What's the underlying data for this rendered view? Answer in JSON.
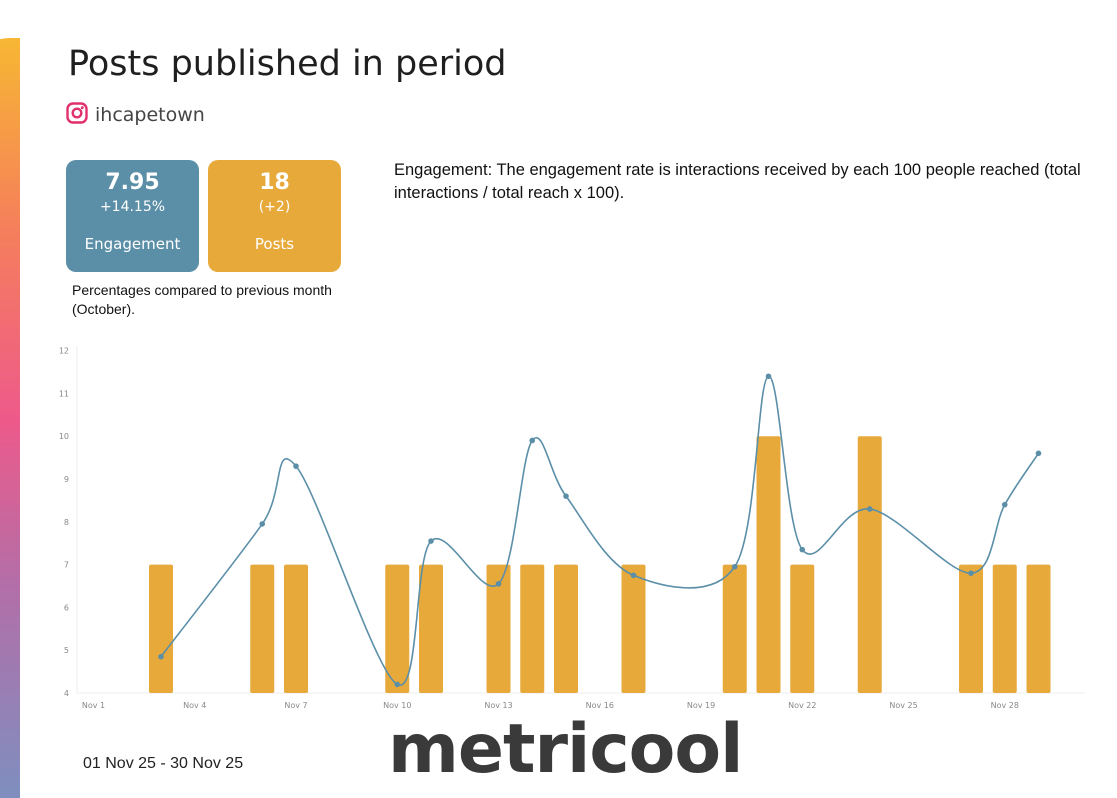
{
  "page": {
    "title": "Posts published in period",
    "account": "ihcapetown",
    "account_icon": "instagram-icon",
    "kpi_cards": [
      {
        "value": "7.95",
        "delta": "+14.15%",
        "label": "Engagement",
        "color": "#5b8fa8"
      },
      {
        "value": "18",
        "delta": "(+2)",
        "label": "Posts",
        "color": "#e7a93a"
      }
    ],
    "note": "Percentages compared to previous month (October).",
    "definition": "Engagement: The engagement rate is interactions received by each 100 people reached (total interactions / total reach x 100).",
    "date_range": "01 Nov 25  -  30 Nov 25",
    "logo_text": "metricool"
  },
  "chart_data": {
    "type": "bar",
    "x": [
      "Nov 1",
      "Nov 2",
      "Nov 3",
      "Nov 4",
      "Nov 5",
      "Nov 6",
      "Nov 7",
      "Nov 8",
      "Nov 9",
      "Nov 10",
      "Nov 11",
      "Nov 12",
      "Nov 13",
      "Nov 14",
      "Nov 15",
      "Nov 16",
      "Nov 17",
      "Nov 18",
      "Nov 19",
      "Nov 20",
      "Nov 21",
      "Nov 22",
      "Nov 23",
      "Nov 24",
      "Nov 25",
      "Nov 26",
      "Nov 27",
      "Nov 28",
      "Nov 29"
    ],
    "x_tick_labels": [
      "Nov 1",
      "Nov 4",
      "Nov 7",
      "Nov 10",
      "Nov 13",
      "Nov 16",
      "Nov 19",
      "Nov 22",
      "Nov 25",
      "Nov 28"
    ],
    "ylim": [
      4,
      12
    ],
    "y_ticks": [
      4,
      5,
      6,
      7,
      8,
      9,
      10,
      11,
      12
    ],
    "grid": false,
    "series": [
      {
        "type": "bar",
        "color": "#e7a93a",
        "values": [
          0,
          0,
          1,
          0,
          0,
          1,
          1,
          0,
          0,
          1,
          1,
          0,
          1,
          1,
          1,
          0,
          1,
          0,
          0,
          1,
          2,
          1,
          0,
          2,
          0,
          0,
          1,
          1,
          1
        ],
        "bar_scale": {
          "count_zero_at": 4,
          "count_one_at": 7,
          "count_two_at": 10
        }
      },
      {
        "type": "line",
        "color": "#5b8fa8",
        "points": [
          {
            "x": "Nov 3",
            "y": 4.85
          },
          {
            "x": "Nov 6",
            "y": 7.95
          },
          {
            "x": "Nov 7",
            "y": 9.3
          },
          {
            "x": "Nov 10",
            "y": 4.2
          },
          {
            "x": "Nov 11",
            "y": 7.55
          },
          {
            "x": "Nov 13",
            "y": 6.55
          },
          {
            "x": "Nov 14",
            "y": 9.9
          },
          {
            "x": "Nov 15",
            "y": 8.6
          },
          {
            "x": "Nov 17",
            "y": 6.75
          },
          {
            "x": "Nov 20",
            "y": 6.95
          },
          {
            "x": "Nov 21",
            "y": 11.4
          },
          {
            "x": "Nov 22",
            "y": 7.35
          },
          {
            "x": "Nov 24",
            "y": 8.3
          },
          {
            "x": "Nov 27",
            "y": 6.8
          },
          {
            "x": "Nov 28",
            "y": 8.4
          },
          {
            "x": "Nov 29",
            "y": 9.6
          }
        ]
      }
    ]
  }
}
